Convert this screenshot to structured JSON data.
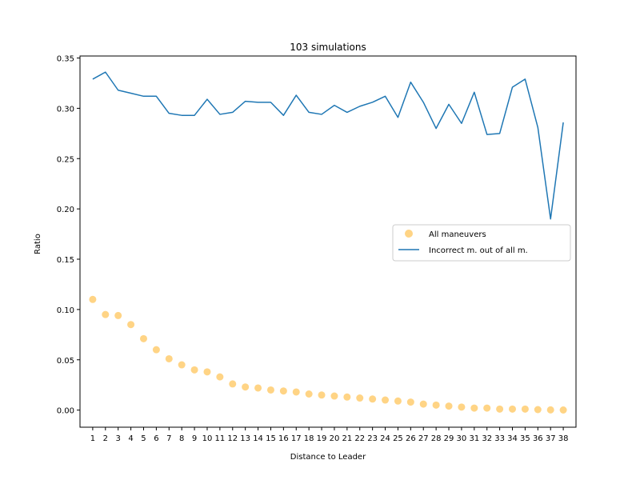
{
  "chart_data": {
    "type": "line",
    "title": "103 simulations",
    "xlabel": "Distance to Leader",
    "ylabel": "Ratio",
    "x": [
      1,
      2,
      3,
      4,
      5,
      6,
      7,
      8,
      9,
      10,
      11,
      12,
      13,
      14,
      15,
      16,
      17,
      18,
      19,
      20,
      21,
      22,
      23,
      24,
      25,
      26,
      27,
      28,
      29,
      30,
      31,
      32,
      33,
      34,
      35,
      36,
      37,
      38
    ],
    "xlim": [
      0,
      39
    ],
    "ylim": [
      -0.017,
      0.352
    ],
    "yticks": [
      0.0,
      0.05,
      0.1,
      0.15,
      0.2,
      0.25,
      0.3,
      0.35
    ],
    "ytick_labels": [
      "0.00",
      "0.05",
      "0.10",
      "0.15",
      "0.20",
      "0.25",
      "0.30",
      "0.35"
    ],
    "grid": false,
    "legend_position": "center-right",
    "series": [
      {
        "name": "All maneuvers",
        "kind": "scatter",
        "color": "#ffb833",
        "alpha": 0.6,
        "values": [
          0.11,
          0.095,
          0.094,
          0.085,
          0.071,
          0.06,
          0.051,
          0.045,
          0.04,
          0.038,
          0.033,
          0.026,
          0.023,
          0.022,
          0.02,
          0.019,
          0.018,
          0.016,
          0.015,
          0.014,
          0.013,
          0.012,
          0.011,
          0.01,
          0.009,
          0.008,
          0.006,
          0.005,
          0.004,
          0.003,
          0.002,
          0.002,
          0.001,
          0.001,
          0.001,
          0.0005,
          0.0002,
          0.0001
        ]
      },
      {
        "name": "Incorrect m. out of all m.",
        "kind": "line",
        "color": "#1f77b4",
        "values": [
          0.329,
          0.336,
          0.318,
          0.315,
          0.312,
          0.312,
          0.295,
          0.293,
          0.293,
          0.309,
          0.294,
          0.296,
          0.307,
          0.306,
          0.306,
          0.293,
          0.313,
          0.296,
          0.294,
          0.303,
          0.296,
          0.302,
          0.306,
          0.312,
          0.291,
          0.326,
          0.306,
          0.28,
          0.304,
          0.285,
          0.316,
          0.274,
          0.275,
          0.321,
          0.329,
          0.281,
          0.19,
          0.286
        ]
      }
    ]
  }
}
